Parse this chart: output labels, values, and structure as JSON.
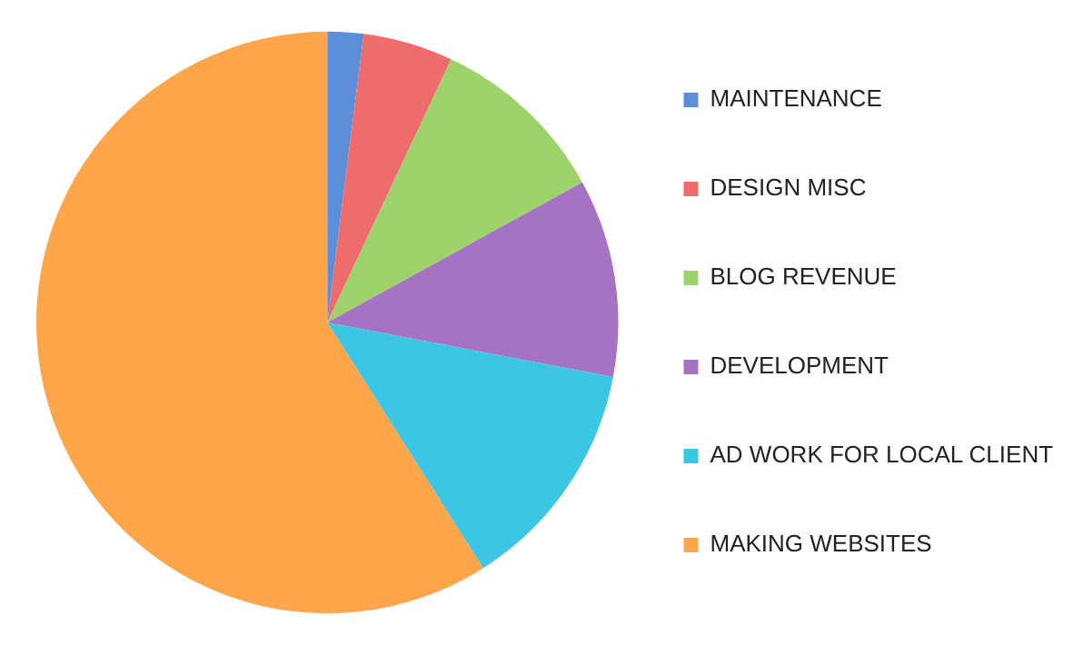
{
  "chart_data": {
    "type": "pie",
    "categories": [
      "MAINTENANCE",
      "DESIGN MISC",
      "BLOG REVENUE",
      "DEVELOPMENT",
      "AD WORK FOR LOCAL CLIENT",
      "MAKING WEBSITES"
    ],
    "values": [
      2,
      5,
      10,
      11,
      13,
      59
    ],
    "colors": [
      "#5b8fd9",
      "#f06b6b",
      "#9dd36a",
      "#a673c2",
      "#3cc6e6",
      "#ffa64d"
    ],
    "legend": "right"
  }
}
